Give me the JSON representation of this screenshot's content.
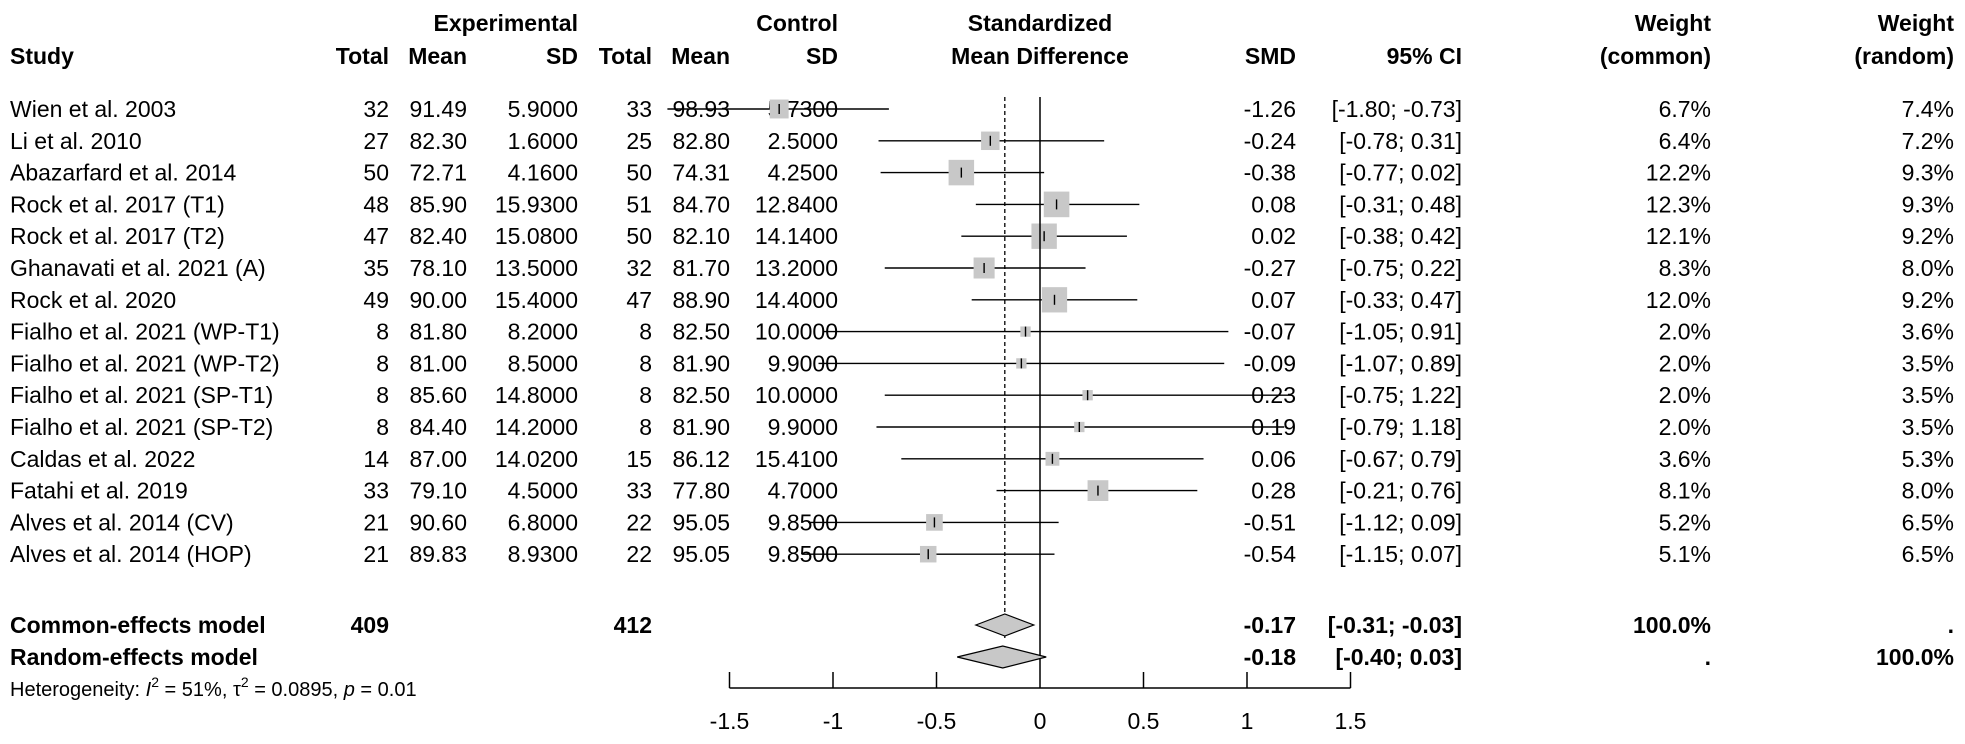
{
  "headers": {
    "experimental": "Experimental",
    "control": "Control",
    "smd_title_1": "Standardized",
    "smd_title_2": "Mean Difference",
    "study": "Study",
    "exp_total": "Total",
    "exp_mean": "Mean",
    "exp_sd": "SD",
    "ctrl_total": "Total",
    "ctrl_mean": "Mean",
    "ctrl_sd": "SD",
    "smd": "SMD",
    "ci": "95% CI",
    "weight_common_1": "Weight",
    "weight_common_2": "(common)",
    "weight_random_1": "Weight",
    "weight_random_2": "(random)"
  },
  "chart_data": {
    "type": "forest",
    "xlim": [
      -1.5,
      1.5
    ],
    "xticks": [
      "-1.5",
      "-1",
      "-0.5",
      "0",
      "0.5",
      "1",
      "1.5"
    ],
    "reference_line": 0,
    "studies": [
      {
        "study": "Wien et al. 2003",
        "e_total": "32",
        "e_mean": "91.49",
        "e_sd": "5.9000",
        "c_total": "33",
        "c_mean": "98.93",
        "c_sd": "5.7300",
        "smd": -1.26,
        "lo": -1.8,
        "hi": -0.73,
        "smd_text": "-1.26",
        "ci_text": "[-1.80; -0.73]",
        "w_common": "6.7%",
        "w_random": "7.4%",
        "w": 6.7
      },
      {
        "study": "Li et al. 2010",
        "e_total": "27",
        "e_mean": "82.30",
        "e_sd": "1.6000",
        "c_total": "25",
        "c_mean": "82.80",
        "c_sd": "2.5000",
        "smd": -0.24,
        "lo": -0.78,
        "hi": 0.31,
        "smd_text": "-0.24",
        "ci_text": "[-0.78; 0.31]",
        "w_common": "6.4%",
        "w_random": "7.2%",
        "w": 6.4
      },
      {
        "study": "Abazarfard et al. 2014",
        "e_total": "50",
        "e_mean": "72.71",
        "e_sd": "4.1600",
        "c_total": "50",
        "c_mean": "74.31",
        "c_sd": "4.2500",
        "smd": -0.38,
        "lo": -0.77,
        "hi": 0.02,
        "smd_text": "-0.38",
        "ci_text": "[-0.77; 0.02]",
        "w_common": "12.2%",
        "w_random": "9.3%",
        "w": 12.2
      },
      {
        "study": "Rock et al. 2017 (T1)",
        "e_total": "48",
        "e_mean": "85.90",
        "e_sd": "15.9300",
        "c_total": "51",
        "c_mean": "84.70",
        "c_sd": "12.8400",
        "smd": 0.08,
        "lo": -0.31,
        "hi": 0.48,
        "smd_text": "0.08",
        "ci_text": "[-0.31; 0.48]",
        "w_common": "12.3%",
        "w_random": "9.3%",
        "w": 12.3
      },
      {
        "study": "Rock et al. 2017 (T2)",
        "e_total": "47",
        "e_mean": "82.40",
        "e_sd": "15.0800",
        "c_total": "50",
        "c_mean": "82.10",
        "c_sd": "14.1400",
        "smd": 0.02,
        "lo": -0.38,
        "hi": 0.42,
        "smd_text": "0.02",
        "ci_text": "[-0.38; 0.42]",
        "w_common": "12.1%",
        "w_random": "9.2%",
        "w": 12.1
      },
      {
        "study": "Ghanavati et al. 2021 (A)",
        "e_total": "35",
        "e_mean": "78.10",
        "e_sd": "13.5000",
        "c_total": "32",
        "c_mean": "81.70",
        "c_sd": "13.2000",
        "smd": -0.27,
        "lo": -0.75,
        "hi": 0.22,
        "smd_text": "-0.27",
        "ci_text": "[-0.75; 0.22]",
        "w_common": "8.3%",
        "w_random": "8.0%",
        "w": 8.3
      },
      {
        "study": "Rock et al. 2020",
        "e_total": "49",
        "e_mean": "90.00",
        "e_sd": "15.4000",
        "c_total": "47",
        "c_mean": "88.90",
        "c_sd": "14.4000",
        "smd": 0.07,
        "lo": -0.33,
        "hi": 0.47,
        "smd_text": "0.07",
        "ci_text": "[-0.33; 0.47]",
        "w_common": "12.0%",
        "w_random": "9.2%",
        "w": 12.0
      },
      {
        "study": "Fialho et al. 2021 (WP-T1)",
        "e_total": "8",
        "e_mean": "81.80",
        "e_sd": "8.2000",
        "c_total": "8",
        "c_mean": "82.50",
        "c_sd": "10.0000",
        "smd": -0.07,
        "lo": -1.05,
        "hi": 0.91,
        "smd_text": "-0.07",
        "ci_text": "[-1.05; 0.91]",
        "w_common": "2.0%",
        "w_random": "3.6%",
        "w": 2.0
      },
      {
        "study": "Fialho et al. 2021 (WP-T2)",
        "e_total": "8",
        "e_mean": "81.00",
        "e_sd": "8.5000",
        "c_total": "8",
        "c_mean": "81.90",
        "c_sd": "9.9000",
        "smd": -0.09,
        "lo": -1.07,
        "hi": 0.89,
        "smd_text": "-0.09",
        "ci_text": "[-1.07; 0.89]",
        "w_common": "2.0%",
        "w_random": "3.5%",
        "w": 2.0
      },
      {
        "study": "Fialho et al. 2021 (SP-T1)",
        "e_total": "8",
        "e_mean": "85.60",
        "e_sd": "14.8000",
        "c_total": "8",
        "c_mean": "82.50",
        "c_sd": "10.0000",
        "smd": 0.23,
        "lo": -0.75,
        "hi": 1.22,
        "smd_text": "0.23",
        "ci_text": "[-0.75; 1.22]",
        "w_common": "2.0%",
        "w_random": "3.5%",
        "w": 2.0
      },
      {
        "study": "Fialho et al. 2021 (SP-T2)",
        "e_total": "8",
        "e_mean": "84.40",
        "e_sd": "14.2000",
        "c_total": "8",
        "c_mean": "81.90",
        "c_sd": "9.9000",
        "smd": 0.19,
        "lo": -0.79,
        "hi": 1.18,
        "smd_text": "0.19",
        "ci_text": "[-0.79; 1.18]",
        "w_common": "2.0%",
        "w_random": "3.5%",
        "w": 2.0
      },
      {
        "study": "Caldas et al. 2022",
        "e_total": "14",
        "e_mean": "87.00",
        "e_sd": "14.0200",
        "c_total": "15",
        "c_mean": "86.12",
        "c_sd": "15.4100",
        "smd": 0.06,
        "lo": -0.67,
        "hi": 0.79,
        "smd_text": "0.06",
        "ci_text": "[-0.67; 0.79]",
        "w_common": "3.6%",
        "w_random": "5.3%",
        "w": 3.6
      },
      {
        "study": "Fatahi et al. 2019",
        "e_total": "33",
        "e_mean": "79.10",
        "e_sd": "4.5000",
        "c_total": "33",
        "c_mean": "77.80",
        "c_sd": "4.7000",
        "smd": 0.28,
        "lo": -0.21,
        "hi": 0.76,
        "smd_text": "0.28",
        "ci_text": "[-0.21; 0.76]",
        "w_common": "8.1%",
        "w_random": "8.0%",
        "w": 8.1
      },
      {
        "study": "Alves et al. 2014 (CV)",
        "e_total": "21",
        "e_mean": "90.60",
        "e_sd": "6.8000",
        "c_total": "22",
        "c_mean": "95.05",
        "c_sd": "9.8500",
        "smd": -0.51,
        "lo": -1.12,
        "hi": 0.09,
        "smd_text": "-0.51",
        "ci_text": "[-1.12; 0.09]",
        "w_common": "5.2%",
        "w_random": "6.5%",
        "w": 5.2
      },
      {
        "study": "Alves et al. 2014 (HOP)",
        "e_total": "21",
        "e_mean": "89.83",
        "e_sd": "8.9300",
        "c_total": "22",
        "c_mean": "95.05",
        "c_sd": "9.8500",
        "smd": -0.54,
        "lo": -1.15,
        "hi": 0.07,
        "smd_text": "-0.54",
        "ci_text": "[-1.15; 0.07]",
        "w_common": "5.1%",
        "w_random": "6.5%",
        "w": 5.1
      }
    ],
    "summary": [
      {
        "label": "Common-effects model",
        "e_total": "409",
        "c_total": "412",
        "smd": -0.17,
        "lo": -0.31,
        "hi": -0.03,
        "smd_text": "-0.17",
        "ci_text": "[-0.31; -0.03]",
        "w_common": "100.0%",
        "w_random": "."
      },
      {
        "label": "Random-effects model",
        "e_total": "",
        "c_total": "",
        "smd": -0.18,
        "lo": -0.4,
        "hi": 0.03,
        "smd_text": "-0.18",
        "ci_text": "[-0.40; 0.03]",
        "w_common": ".",
        "w_random": "100.0%"
      }
    ],
    "heterogeneity": {
      "prefix": "Heterogeneity: ",
      "i2_symbol": "I",
      "i2_sup": "2",
      "i2_value": " = 51%, ",
      "tau2_symbol": "τ",
      "tau2_sup": "2",
      "tau2_value": " = 0.0895, ",
      "p_symbol": "p",
      "p_value": " = 0.01"
    }
  }
}
